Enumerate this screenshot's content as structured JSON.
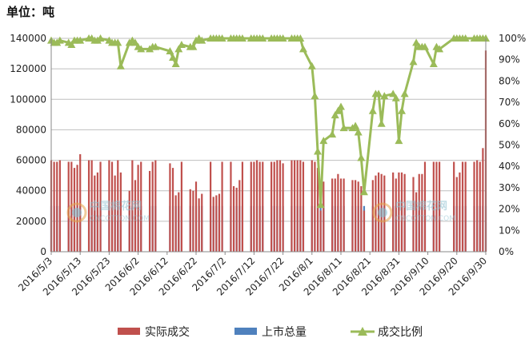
{
  "unit_label": "单位：吨",
  "watermark": {
    "cn": "中国棉花网",
    "en": "CNCOTTON.COM"
  },
  "colors": {
    "actual": "#c0504d",
    "listed": "#4f81bd",
    "ratio": "#9bbb59",
    "grid": "#bfbfbf"
  },
  "chart_data": {
    "type": "bar",
    "left_axis": {
      "min": 0,
      "max": 140000,
      "ticks": [
        "0",
        "20000",
        "40000",
        "60000",
        "80000",
        "100000",
        "120000",
        "140000"
      ]
    },
    "right_axis": {
      "min": 0,
      "max": 100,
      "ticks": [
        "0%",
        "10%",
        "20%",
        "30%",
        "40%",
        "50%",
        "60%",
        "70%",
        "80%",
        "90%",
        "100%"
      ]
    },
    "x_tick_labels": [
      "2016/5/3",
      "2016/5/13",
      "2016/5/23",
      "2016/6/2",
      "2016/6/12",
      "2016/6/22",
      "2016/7/2",
      "2016/7/12",
      "2016/7/22",
      "2016/8/1",
      "2016/8/11",
      "2016/8/21",
      "2016/8/31",
      "2016/9/10",
      "2016/9/20",
      "2016/9/30"
    ],
    "x_start": "2016/5/3",
    "x_end": "2016/9/30",
    "legend": [
      {
        "key": "actual",
        "label": "实际成交",
        "shape": "square"
      },
      {
        "key": "listed",
        "label": "上市总量",
        "shape": "square"
      },
      {
        "key": "ratio",
        "label": "成交比例",
        "shape": "line-triangle"
      }
    ],
    "x": [
      "2016/5/3",
      "2016/5/4",
      "2016/5/5",
      "2016/5/6",
      "2016/5/9",
      "2016/5/10",
      "2016/5/11",
      "2016/5/12",
      "2016/5/13",
      "2016/5/16",
      "2016/5/17",
      "2016/5/18",
      "2016/5/19",
      "2016/5/20",
      "2016/5/23",
      "2016/5/24",
      "2016/5/25",
      "2016/5/26",
      "2016/5/27",
      "2016/5/30",
      "2016/5/31",
      "2016/6/1",
      "2016/6/2",
      "2016/6/3",
      "2016/6/6",
      "2016/6/7",
      "2016/6/8",
      "2016/6/13",
      "2016/6/14",
      "2016/6/15",
      "2016/6/16",
      "2016/6/17",
      "2016/6/20",
      "2016/6/21",
      "2016/6/22",
      "2016/6/23",
      "2016/6/24",
      "2016/6/27",
      "2016/6/28",
      "2016/6/29",
      "2016/6/30",
      "2016/7/1",
      "2016/7/4",
      "2016/7/5",
      "2016/7/6",
      "2016/7/7",
      "2016/7/8",
      "2016/7/11",
      "2016/7/12",
      "2016/7/13",
      "2016/7/14",
      "2016/7/15",
      "2016/7/18",
      "2016/7/19",
      "2016/7/20",
      "2016/7/21",
      "2016/7/22",
      "2016/7/25",
      "2016/7/26",
      "2016/7/27",
      "2016/7/28",
      "2016/7/29",
      "2016/8/1",
      "2016/8/2",
      "2016/8/3",
      "2016/8/4",
      "2016/8/5",
      "2016/8/8",
      "2016/8/9",
      "2016/8/10",
      "2016/8/11",
      "2016/8/12",
      "2016/8/15",
      "2016/8/16",
      "2016/8/17",
      "2016/8/18",
      "2016/8/19",
      "2016/8/22",
      "2016/8/23",
      "2016/8/24",
      "2016/8/25",
      "2016/8/26",
      "2016/8/29",
      "2016/8/30",
      "2016/8/31",
      "2016/9/1",
      "2016/9/2",
      "2016/9/5",
      "2016/9/6",
      "2016/9/7",
      "2016/9/8",
      "2016/9/9",
      "2016/9/12",
      "2016/9/13",
      "2016/9/14",
      "2016/9/19",
      "2016/9/20",
      "2016/9/21",
      "2016/9/22",
      "2016/9/23",
      "2016/9/26",
      "2016/9/27",
      "2016/9/28",
      "2016/9/29",
      "2016/9/30"
    ],
    "series": [
      {
        "name": "实际成交",
        "axis": "left",
        "type": "bar",
        "values": [
          60000,
          59000,
          59000,
          60000,
          59000,
          59000,
          55000,
          57000,
          64000,
          60000,
          60000,
          50000,
          52000,
          59000,
          60000,
          59000,
          50000,
          60000,
          52000,
          40000,
          60000,
          47000,
          57000,
          59000,
          53000,
          59000,
          60000,
          58000,
          55000,
          37000,
          39000,
          59000,
          41000,
          40000,
          46000,
          35000,
          38000,
          59000,
          36000,
          37000,
          38000,
          59000,
          59000,
          43000,
          42000,
          47000,
          59000,
          59000,
          59000,
          60000,
          59000,
          59000,
          59000,
          59000,
          60000,
          60000,
          58000,
          60000,
          60000,
          60000,
          60000,
          59000,
          60000,
          59000,
          55000,
          27000,
          46000,
          48000,
          48000,
          51000,
          48000,
          48000,
          47000,
          47000,
          46000,
          43000,
          27000,
          47000,
          50000,
          52000,
          51000,
          50000,
          52000,
          48000,
          52000,
          52000,
          51000,
          49000,
          39000,
          51000,
          51000,
          59000,
          59000,
          59000,
          59000,
          59000,
          49000,
          52000,
          59000,
          59000,
          59000,
          60000,
          59000,
          68000,
          132000
        ]
      },
      {
        "name": "上市总量",
        "axis": "left",
        "type": "bar",
        "values": [
          30000,
          30000,
          30000,
          30000,
          30000,
          30000,
          30000,
          30000,
          30000,
          30000,
          30000,
          30000,
          30000,
          30000,
          30000,
          30000,
          30000,
          30000,
          30000,
          30000,
          30000,
          30000,
          30000,
          30000,
          30000,
          30000,
          30000,
          30000,
          30000,
          30000,
          30000,
          30000,
          30000,
          30000,
          30000,
          30000,
          30000,
          30000,
          30000,
          30000,
          30000,
          30000,
          30000,
          30000,
          30000,
          30000,
          30000,
          30000,
          30000,
          30000,
          30000,
          30000,
          30000,
          30000,
          30000,
          30000,
          30000,
          30000,
          30000,
          30000,
          30000,
          30000,
          30000,
          30000,
          30000,
          30000,
          30000,
          30000,
          30000,
          30000,
          30000,
          30000,
          30000,
          30000,
          30000,
          30000,
          30000,
          30000,
          30000,
          30000,
          30000,
          30000,
          30000,
          30000,
          30000,
          30000,
          30000,
          30000,
          30000,
          30000,
          30000,
          30000,
          30000,
          30000,
          30000,
          30000,
          30000,
          30000,
          30000,
          30000,
          30000,
          30000,
          30000,
          30000,
          30000
        ]
      },
      {
        "name": "成交比例",
        "axis": "right",
        "type": "line",
        "values": [
          99,
          98,
          98,
          99,
          98,
          97,
          99,
          99,
          99,
          100,
          100,
          99,
          99,
          100,
          99,
          98,
          98,
          98,
          87,
          98,
          99,
          98,
          96,
          95,
          95,
          96,
          96,
          94,
          91,
          88,
          95,
          97,
          96,
          96,
          99,
          100,
          99,
          100,
          100,
          100,
          100,
          100,
          100,
          100,
          100,
          100,
          100,
          100,
          100,
          100,
          100,
          100,
          100,
          100,
          100,
          100,
          100,
          100,
          100,
          100,
          100,
          95,
          87,
          73,
          47,
          22,
          52,
          55,
          64,
          66,
          68,
          58,
          58,
          59,
          56,
          44,
          28,
          66,
          74,
          74,
          60,
          73,
          74,
          72,
          52,
          66,
          74,
          89,
          98,
          96,
          96,
          96,
          88,
          96,
          95,
          100,
          100,
          100,
          100,
          100,
          100,
          100,
          100,
          100,
          100
        ]
      }
    ]
  }
}
